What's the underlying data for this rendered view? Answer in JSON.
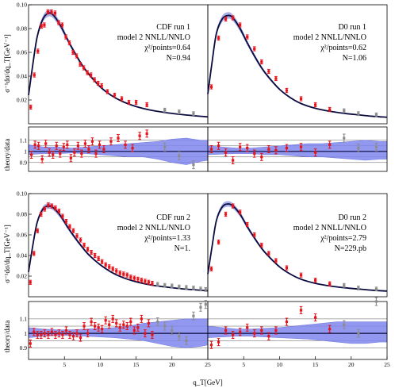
{
  "chart_data": [
    {
      "type": "scatter",
      "id": "cdf1",
      "annotation": [
        "CDF run 1",
        "model 2 NNLL/NNLO",
        "χ²/points=0.64",
        "N=0.94"
      ],
      "xlim": [
        0,
        25
      ],
      "ylim": [
        0,
        0.1
      ],
      "yticks": [
        "0.10",
        "0.08",
        "0.06",
        "0.04",
        "0.02"
      ],
      "ylabel": "σ⁻¹dσ/dq_T[GeV⁻¹]",
      "theory_curve": {
        "x": [
          0.0,
          0.6,
          1.2,
          2.0,
          2.8,
          3.5,
          4.5,
          5.5,
          6.5,
          7.5,
          8.5,
          10.0,
          11.5,
          13.0,
          15.0,
          17.0,
          19.0,
          21.0,
          23.0,
          25.0
        ],
        "y": [
          0.024,
          0.05,
          0.073,
          0.088,
          0.093,
          0.091,
          0.082,
          0.07,
          0.059,
          0.049,
          0.041,
          0.031,
          0.024,
          0.019,
          0.0145,
          0.0115,
          0.0095,
          0.008,
          0.0068,
          0.0058
        ]
      },
      "data_points": {
        "x": [
          0.3,
          0.8,
          1.3,
          1.8,
          2.2,
          2.7,
          3.2,
          3.7,
          4.2,
          4.7,
          5.2,
          5.7,
          6.2,
          6.7,
          7.2,
          7.7,
          8.2,
          8.7,
          9.2,
          9.7,
          10.2,
          11.0,
          12.0,
          13.0,
          14.0,
          15.0,
          16.5
        ],
        "y": [
          0.014,
          0.041,
          0.061,
          0.082,
          0.083,
          0.094,
          0.094,
          0.093,
          0.085,
          0.083,
          0.073,
          0.068,
          0.06,
          0.057,
          0.05,
          0.047,
          0.043,
          0.041,
          0.037,
          0.034,
          0.032,
          0.027,
          0.024,
          0.021,
          0.018,
          0.018,
          0.016
        ]
      },
      "gray_points": {
        "x": [
          19.0,
          21.0,
          23.0
        ],
        "y": [
          0.0115,
          0.01,
          0.0085
        ]
      }
    },
    {
      "type": "scatter",
      "id": "d01",
      "annotation": [
        "D0 run 1",
        "model 2 NNLL/NNLO",
        "χ²/points=0.62",
        "N=1.06"
      ],
      "xlim": [
        0,
        25
      ],
      "ylim": [
        0,
        0.1
      ],
      "theory_curve": {
        "x": [
          0.0,
          0.6,
          1.2,
          2.0,
          2.8,
          3.5,
          4.5,
          5.5,
          6.5,
          7.5,
          8.5,
          10.0,
          11.5,
          13.0,
          15.0,
          17.0,
          19.0,
          21.0,
          23.0,
          25.0
        ],
        "y": [
          0.025,
          0.052,
          0.076,
          0.088,
          0.091,
          0.089,
          0.08,
          0.068,
          0.057,
          0.047,
          0.039,
          0.029,
          0.022,
          0.017,
          0.013,
          0.0105,
          0.0088,
          0.0075,
          0.0063,
          0.0055
        ]
      },
      "data_points": {
        "x": [
          0.5,
          1.5,
          2.5,
          3.5,
          4.5,
          5.5,
          6.5,
          7.5,
          8.5,
          9.5,
          11.0,
          13.0,
          15.0,
          17.0
        ],
        "y": [
          0.031,
          0.072,
          0.088,
          0.089,
          0.083,
          0.073,
          0.063,
          0.052,
          0.044,
          0.038,
          0.028,
          0.021,
          0.016,
          0.012
        ]
      },
      "gray_points": {
        "x": [
          19.0,
          21.0,
          23.5
        ],
        "y": [
          0.011,
          0.0085,
          0.0075
        ]
      }
    },
    {
      "type": "scatter",
      "id": "cdf2",
      "annotation": [
        "CDF run 2",
        "model 2 NNLL/NNLO",
        "χ²/points=1.33",
        "N=1."
      ],
      "xlim": [
        0,
        25
      ],
      "ylim": [
        0,
        0.1
      ],
      "yticks": [
        "0.10",
        "0.08",
        "0.06",
        "0.04",
        "0.02"
      ],
      "ylabel": "σ⁻¹dσ/dq_T[GeV⁻¹]",
      "theory_curve": {
        "x": [
          0.0,
          0.6,
          1.2,
          2.0,
          2.8,
          3.5,
          4.5,
          5.5,
          6.5,
          7.5,
          8.5,
          10.0,
          11.5,
          13.0,
          15.0,
          17.0,
          19.0,
          21.0,
          23.0,
          25.0
        ],
        "y": [
          0.024,
          0.05,
          0.072,
          0.085,
          0.088,
          0.086,
          0.078,
          0.067,
          0.057,
          0.048,
          0.04,
          0.031,
          0.024,
          0.019,
          0.0145,
          0.0115,
          0.0095,
          0.008,
          0.0068,
          0.0058
        ]
      },
      "data_points": {
        "x": [
          0.25,
          0.75,
          1.25,
          1.75,
          2.25,
          2.75,
          3.25,
          3.75,
          4.25,
          4.75,
          5.25,
          5.75,
          6.25,
          6.75,
          7.25,
          7.75,
          8.25,
          8.75,
          9.25,
          9.75,
          10.25,
          10.75,
          11.25,
          11.75,
          12.25,
          12.75,
          13.25,
          13.75,
          14.25,
          14.75,
          15.25,
          15.75,
          16.25,
          16.75,
          17.25
        ],
        "y": [
          0.014,
          0.042,
          0.064,
          0.08,
          0.085,
          0.089,
          0.088,
          0.086,
          0.083,
          0.078,
          0.073,
          0.068,
          0.064,
          0.059,
          0.055,
          0.05,
          0.046,
          0.043,
          0.04,
          0.037,
          0.034,
          0.031,
          0.029,
          0.027,
          0.025,
          0.023,
          0.022,
          0.021,
          0.019,
          0.018,
          0.017,
          0.016,
          0.015,
          0.014,
          0.013
        ]
      },
      "gray_points": {
        "x": [
          18.0,
          19.0,
          20.0,
          21.0,
          22.0,
          23.0,
          24.0,
          24.7
        ],
        "y": [
          0.012,
          0.011,
          0.0105,
          0.0095,
          0.009,
          0.0085,
          0.0075,
          0.007
        ]
      }
    },
    {
      "type": "scatter",
      "id": "d02",
      "annotation": [
        "D0 run 2",
        "model 2 NNLL/NNLO",
        "χ²/points=2.79",
        "N=229.pb"
      ],
      "xlim": [
        0,
        25
      ],
      "ylim": [
        0,
        0.1
      ],
      "theory_curve": {
        "x": [
          0.0,
          0.6,
          1.2,
          2.0,
          2.8,
          3.5,
          4.5,
          5.5,
          6.5,
          7.5,
          8.5,
          10.0,
          11.5,
          13.0,
          15.0,
          17.0,
          19.0,
          21.0,
          23.0,
          25.0
        ],
        "y": [
          0.022,
          0.049,
          0.074,
          0.087,
          0.09,
          0.088,
          0.08,
          0.068,
          0.057,
          0.047,
          0.039,
          0.029,
          0.022,
          0.017,
          0.013,
          0.0105,
          0.0088,
          0.0075,
          0.0063,
          0.0055
        ]
      },
      "data_points": {
        "x": [
          0.5,
          1.5,
          2.5,
          3.5,
          4.5,
          5.5,
          6.5,
          7.5,
          8.5,
          9.5,
          11.0,
          13.0,
          15.0,
          17.0
        ],
        "y": [
          0.027,
          0.053,
          0.08,
          0.088,
          0.082,
          0.07,
          0.06,
          0.05,
          0.042,
          0.035,
          0.028,
          0.021,
          0.016,
          0.0125
        ]
      },
      "gray_points": {
        "x": [
          19.0,
          21.0,
          23.5
        ],
        "y": [
          0.011,
          0.0085,
          0.0075
        ]
      }
    },
    {
      "type": "scatter",
      "id": "r_cdf1",
      "ylabel": "theory/data",
      "xlim": [
        0,
        25
      ],
      "ylim": [
        0.82,
        1.22
      ],
      "yticks": [
        "1.1",
        "1",
        "0.9"
      ],
      "band": {
        "x": [
          0,
          2,
          4,
          6,
          8,
          10,
          12,
          14,
          16,
          18,
          20,
          22,
          24,
          25
        ],
        "lo": [
          0.97,
          0.98,
          0.98,
          0.985,
          0.98,
          0.97,
          0.96,
          0.95,
          0.95,
          0.93,
          0.9,
          0.88,
          0.91,
          0.92
        ],
        "hi": [
          1.06,
          1.04,
          1.04,
          1.03,
          1.04,
          1.05,
          1.06,
          1.07,
          1.08,
          1.09,
          1.11,
          1.12,
          1.1,
          1.1
        ]
      },
      "points": {
        "x": [
          0.4,
          0.9,
          1.4,
          1.9,
          2.4,
          2.9,
          3.4,
          3.9,
          4.4,
          4.9,
          5.4,
          5.9,
          6.4,
          6.9,
          7.4,
          7.9,
          8.4,
          8.9,
          9.4,
          9.9,
          10.5,
          11.5,
          12.5,
          13.5,
          14.5,
          15.5,
          16.5
        ],
        "y": [
          0.97,
          1.06,
          1.05,
          0.93,
          1.07,
          0.99,
          0.97,
          1.05,
          0.98,
          1.04,
          1.06,
          0.94,
          0.99,
          1.05,
          0.98,
          1.07,
          1.02,
          1.09,
          0.98,
          1.06,
          1.02,
          1.09,
          1.12,
          1.06,
          1.03,
          1.14,
          1.16
        ]
      },
      "gray_points": {
        "x": [
          19.0,
          21.0,
          23.0
        ],
        "y": [
          1.04,
          0.96,
          0.88
        ]
      }
    },
    {
      "type": "scatter",
      "id": "r_d01",
      "xlim": [
        0,
        25
      ],
      "ylim": [
        0.82,
        1.22
      ],
      "band": {
        "x": [
          0,
          2,
          4,
          6,
          8,
          10,
          12,
          14,
          16,
          18,
          20,
          22,
          24,
          25
        ],
        "lo": [
          0.97,
          0.975,
          0.98,
          0.98,
          0.97,
          0.97,
          0.96,
          0.95,
          0.95,
          0.94,
          0.93,
          0.92,
          0.93,
          0.93
        ],
        "hi": [
          1.05,
          1.04,
          1.03,
          1.03,
          1.04,
          1.05,
          1.06,
          1.07,
          1.07,
          1.08,
          1.09,
          1.1,
          1.09,
          1.09
        ]
      },
      "points": {
        "x": [
          0.5,
          1.5,
          2.5,
          3.5,
          4.5,
          5.5,
          6.5,
          7.5,
          8.5,
          9.5,
          11.0,
          13.0,
          15.0,
          17.0
        ],
        "y": [
          1.02,
          1.05,
          0.99,
          0.92,
          1.04,
          1.03,
          0.98,
          0.95,
          1.02,
          1.01,
          1.03,
          1.04,
          0.99,
          1.06
        ]
      },
      "gray_points": {
        "x": [
          19.0,
          21.0,
          23.5
        ],
        "y": [
          1.12,
          1.03,
          1.04
        ]
      }
    },
    {
      "type": "scatter",
      "id": "r_cdf2",
      "ylabel": "theory/data",
      "xlim": [
        0,
        25
      ],
      "ylim": [
        0.82,
        1.22
      ],
      "yticks": [
        "1.1",
        "1",
        "0.9"
      ],
      "band": {
        "x": [
          0,
          2,
          4,
          6,
          8,
          10,
          12,
          14,
          16,
          18,
          20,
          22,
          24,
          25
        ],
        "lo": [
          0.97,
          0.98,
          0.985,
          0.985,
          0.98,
          0.975,
          0.97,
          0.96,
          0.95,
          0.93,
          0.91,
          0.9,
          0.91,
          0.92
        ],
        "hi": [
          1.04,
          1.03,
          1.025,
          1.025,
          1.03,
          1.035,
          1.04,
          1.05,
          1.07,
          1.08,
          1.09,
          1.1,
          1.1,
          1.1
        ]
      },
      "points": {
        "x": [
          0.25,
          0.75,
          1.25,
          1.75,
          2.25,
          2.75,
          3.25,
          3.75,
          4.25,
          4.75,
          5.25,
          5.75,
          6.25,
          6.75,
          7.25,
          7.75,
          8.25,
          8.75,
          9.25,
          9.75,
          10.25,
          10.75,
          11.25,
          11.75,
          12.25,
          12.75,
          13.25,
          13.75,
          14.25,
          14.75,
          15.25,
          15.75,
          16.25,
          16.75,
          17.25
        ],
        "y": [
          0.93,
          1.01,
          0.99,
          0.99,
          1.0,
          0.99,
          1.01,
          0.99,
          1.0,
          0.99,
          1.02,
          0.99,
          0.98,
          1.0,
          0.97,
          1.05,
          1.0,
          1.08,
          1.05,
          1.04,
          1.03,
          1.09,
          1.06,
          1.1,
          1.07,
          1.04,
          1.06,
          1.05,
          1.08,
          1.02,
          1.04,
          1.1,
          1.0,
          1.07,
          0.99
        ]
      },
      "gray_points": {
        "x": [
          18.0,
          19.0,
          20.0,
          21.0,
          22.0,
          23.0,
          24.0,
          24.7
        ],
        "y": [
          1.08,
          1.05,
          1.02,
          0.98,
          0.95,
          1.12,
          1.18,
          1.2
        ]
      }
    },
    {
      "type": "scatter",
      "id": "r_d02",
      "xlim": [
        0,
        25
      ],
      "ylim": [
        0.82,
        1.22
      ],
      "xticks": [
        "5",
        "10",
        "15",
        "20",
        "25"
      ],
      "band": {
        "x": [
          0,
          2,
          4,
          6,
          8,
          10,
          12,
          14,
          16,
          18,
          20,
          22,
          24,
          25
        ],
        "lo": [
          0.97,
          0.975,
          0.98,
          0.98,
          0.975,
          0.97,
          0.965,
          0.96,
          0.95,
          0.94,
          0.93,
          0.93,
          0.94,
          0.94
        ],
        "hi": [
          1.05,
          1.04,
          1.03,
          1.03,
          1.035,
          1.04,
          1.05,
          1.06,
          1.07,
          1.08,
          1.08,
          1.08,
          1.08,
          1.08
        ]
      },
      "points": {
        "x": [
          0.5,
          1.5,
          2.5,
          3.5,
          4.5,
          5.5,
          6.5,
          7.5,
          8.5,
          9.5,
          11.0,
          13.0,
          15.0,
          17.0
        ],
        "y": [
          0.92,
          0.94,
          1.02,
          0.99,
          1.01,
          1.04,
          1.0,
          1.02,
          0.98,
          1.02,
          1.08,
          1.16,
          1.11,
          1.03
        ]
      },
      "gray_points": {
        "x": [
          19.0,
          21.0,
          23.5
        ],
        "y": [
          1.06,
          1.0,
          1.22
        ]
      }
    }
  ],
  "figure": {
    "xlabel": "q_T[GeV]",
    "xticks": [
      "5",
      "10",
      "15",
      "20",
      "25"
    ],
    "colors": {
      "curve": "#0b0b3f",
      "band_main": "#a9b0e8",
      "band_ratio": "#7f86ec",
      "points": "#e8131b",
      "gray": "#8c8c8c",
      "grid": "#5a5a5a"
    }
  }
}
